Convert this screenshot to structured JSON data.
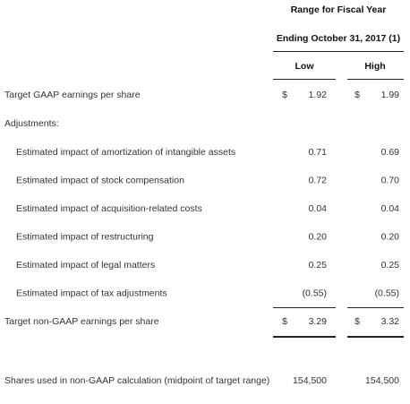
{
  "header": {
    "title": "Range for Fiscal Year",
    "subtitle": "Ending October 31, 2017 (1)",
    "columns": [
      "Low",
      "High"
    ]
  },
  "table": {
    "gaap": {
      "label": "Target GAAP earnings per share",
      "currency": [
        "$",
        "$"
      ],
      "values": [
        "1.92",
        "1.99"
      ]
    },
    "adjustments": {
      "label": "Adjustments:",
      "items": [
        {
          "label": "Estimated impact of amortization of intangible assets",
          "values": [
            "0.71",
            "0.69"
          ]
        },
        {
          "label": "Estimated impact of stock compensation",
          "values": [
            "0.72",
            "0.70"
          ]
        },
        {
          "label": "Estimated impact of acquisition-related costs",
          "values": [
            "0.04",
            "0.04"
          ]
        },
        {
          "label": "Estimated impact of restructuring",
          "values": [
            "0.20",
            "0.20"
          ]
        },
        {
          "label": "Estimated impact of legal matters",
          "values": [
            "0.25",
            "0.25"
          ]
        },
        {
          "label": "Estimated impact of tax adjustments",
          "values": [
            "(0.55)",
            "(0.55)"
          ]
        }
      ]
    },
    "non_gaap": {
      "label": "Target non-GAAP earnings per share",
      "currency": [
        "$",
        "$"
      ],
      "values": [
        "3.29",
        "3.32"
      ]
    },
    "shares": {
      "label": "Shares used in non-GAAP calculation (midpoint of target range)",
      "values": [
        "154,500",
        "154,500"
      ]
    }
  }
}
